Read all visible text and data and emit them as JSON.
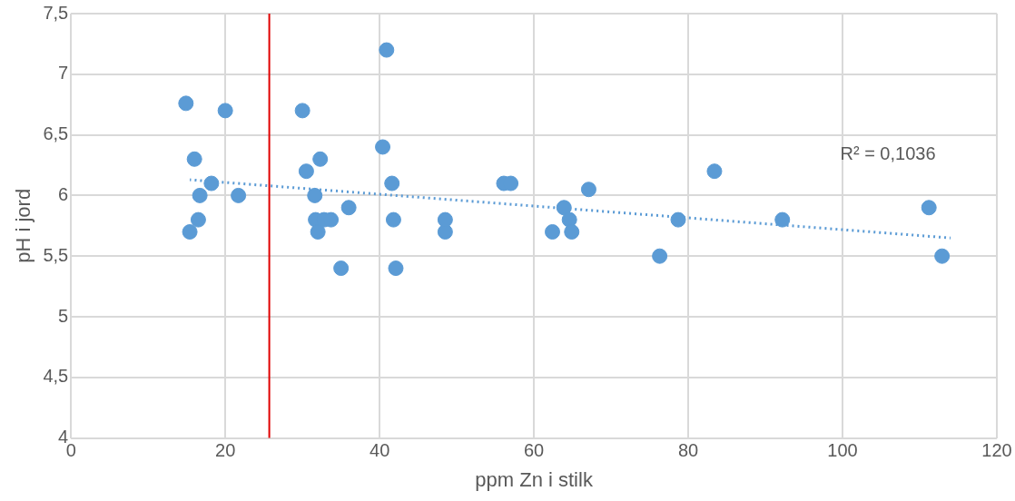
{
  "chart_data": {
    "type": "scatter",
    "xlabel": "ppm Zn i stilk",
    "ylabel": "pH i jord",
    "xlim": [
      0,
      120
    ],
    "xticks": [
      0,
      20,
      40,
      60,
      80,
      100,
      120
    ],
    "ylim": [
      4,
      7.5
    ],
    "yticks": [
      4,
      {
        "value": 4.5,
        "label": "4,5"
      },
      5,
      {
        "value": 5.5,
        "label": "5,5"
      },
      6,
      {
        "value": 6.5,
        "label": "6,5"
      },
      7,
      {
        "value": 7.5,
        "label": "7,5"
      }
    ],
    "grid": true,
    "marker": "circle",
    "series": [
      {
        "color": "#5b9bd5",
        "x": [
          14.9,
          16.0,
          15.4,
          16.7,
          16.5,
          18.2,
          20.0,
          21.7,
          30.0,
          30.5,
          31.6,
          31.7,
          32.0,
          32.3,
          32.8,
          33.7,
          35.0,
          36.0,
          40.4,
          40.9,
          41.6,
          41.8,
          42.1,
          48.5,
          48.5,
          56.1,
          57.0,
          62.4,
          63.9,
          64.6,
          64.9,
          67.1,
          76.3,
          78.7,
          83.4,
          92.2,
          111.2,
          112.9
        ],
        "values": [
          6.76,
          6.3,
          5.7,
          6.0,
          5.8,
          6.1,
          6.7,
          6.0,
          6.7,
          6.2,
          6.0,
          5.8,
          5.7,
          6.3,
          5.8,
          5.8,
          5.4,
          5.9,
          6.4,
          7.2,
          6.1,
          5.8,
          5.4,
          5.7,
          5.8,
          6.1,
          6.1,
          5.7,
          5.9,
          5.8,
          5.7,
          6.05,
          5.5,
          5.8,
          6.2,
          5.8,
          5.9,
          5.5
        ]
      },
      {
        "type": "line",
        "color": "#5b9bd5",
        "line_style": "dotted",
        "marker": "none",
        "x": [
          15.4,
          114
        ],
        "values": [
          6.13,
          5.65
        ]
      }
    ],
    "ref_lines": [
      {
        "axis": "x",
        "value": 25.7,
        "color": "#e00000"
      }
    ],
    "annotations": [
      "R² = 0,1036"
    ]
  }
}
